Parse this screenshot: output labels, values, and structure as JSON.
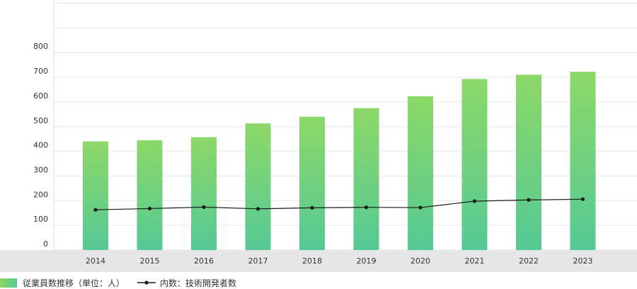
{
  "chart_data": {
    "type": "bar",
    "categories": [
      "2014",
      "2015",
      "2016",
      "2017",
      "2018",
      "2019",
      "2020",
      "2021",
      "2022",
      "2023"
    ],
    "series": [
      {
        "name": "従業員数推移（単位：人）",
        "type": "bar",
        "values": [
          440,
          445,
          457,
          513,
          540,
          575,
          623,
          693,
          710,
          722
        ]
      },
      {
        "name": "内数：技術開発者数",
        "type": "line",
        "values": [
          163,
          168,
          174,
          167,
          171,
          173,
          172,
          198,
          203,
          206
        ]
      }
    ],
    "y_ticks": [
      "0",
      "100",
      "200",
      "300",
      "400",
      "500",
      "600",
      "700",
      "800"
    ],
    "ylim": [
      0,
      1000
    ],
    "grid": true,
    "legend_position": "bottom-left",
    "colors": {
      "bar_top": "#8cd867",
      "bar_bottom": "#55c995",
      "line": "#1a1a1a",
      "grid": "#e6e6e6",
      "axis_band": "#e6e6e6"
    }
  }
}
